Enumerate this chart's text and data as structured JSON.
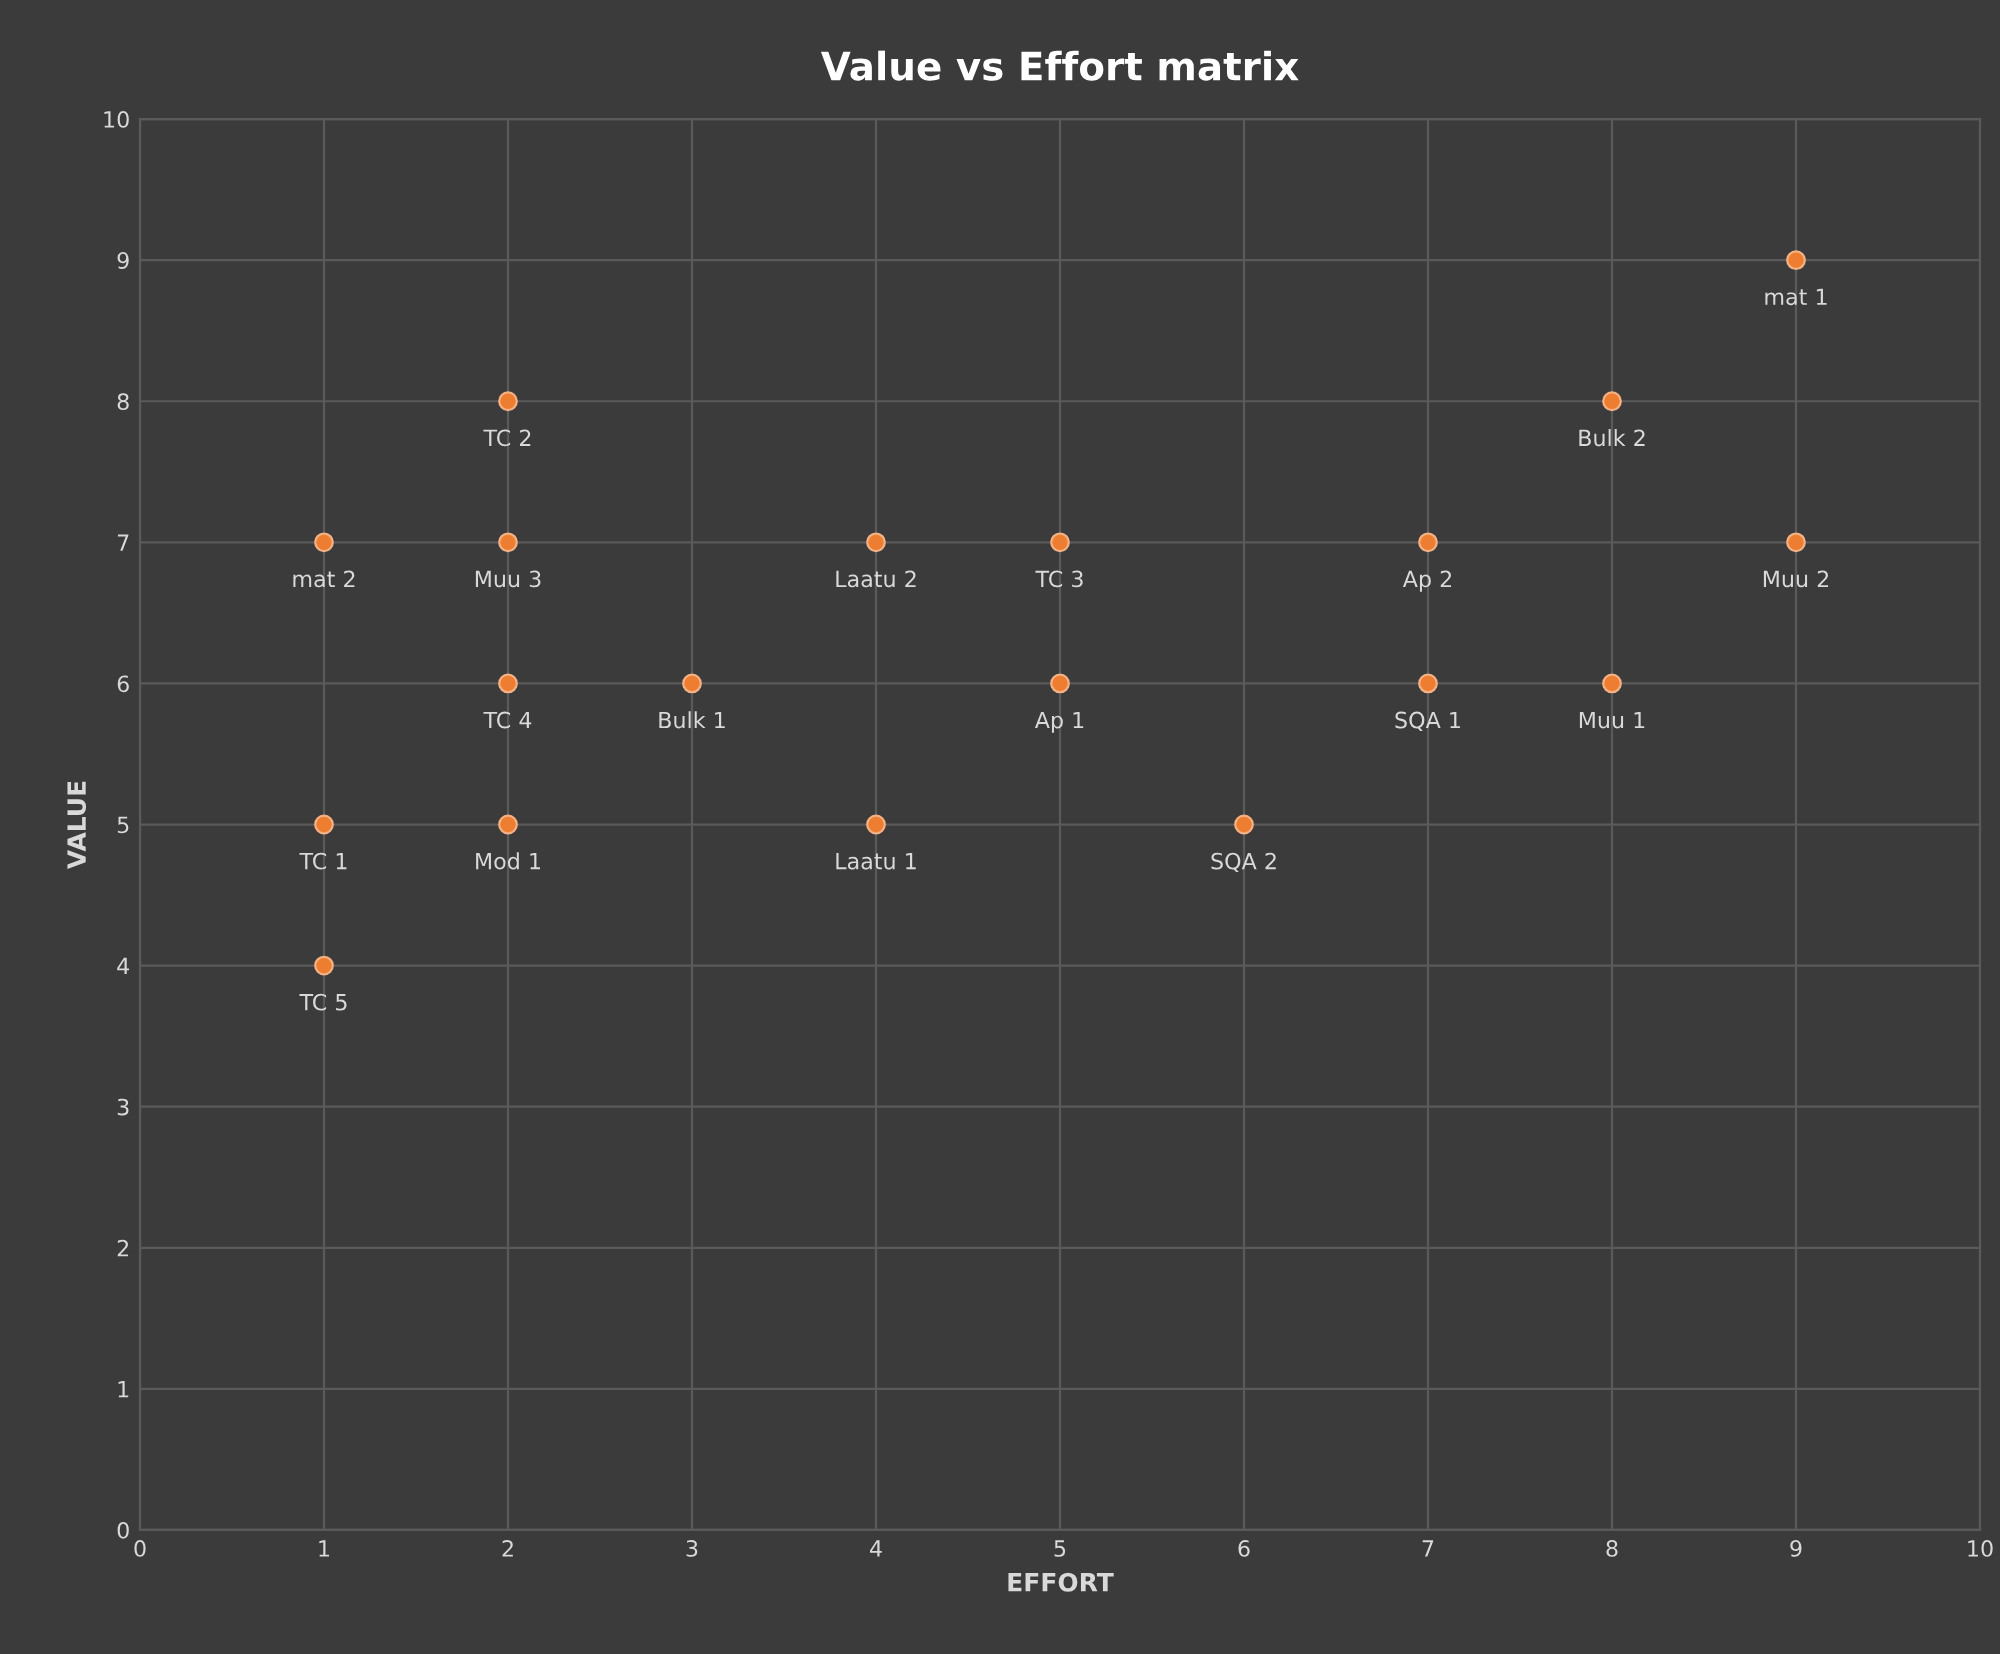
{
  "chart_data": {
    "type": "scatter",
    "title": "Value vs Effort matrix",
    "xlabel": "EFFORT",
    "ylabel": "VALUE",
    "x": [
      1,
      1,
      1,
      2,
      2,
      2,
      2,
      3,
      4,
      4,
      5,
      5,
      6,
      7,
      7,
      8,
      8,
      9,
      9
    ],
    "series": [
      {
        "color": "#ed7d31",
        "values": [
          7,
          5,
          4,
          8,
          7,
          6,
          5,
          6,
          7,
          5,
          7,
          6,
          5,
          7,
          6,
          8,
          6,
          9,
          7
        ]
      }
    ],
    "annotations": [
      {
        "text": "mat 2",
        "x": 1,
        "y": 7
      },
      {
        "text": "TC 1",
        "x": 1,
        "y": 5
      },
      {
        "text": "TC 5",
        "x": 1,
        "y": 4
      },
      {
        "text": "TC 2",
        "x": 2,
        "y": 8
      },
      {
        "text": "Muu 3",
        "x": 2,
        "y": 7
      },
      {
        "text": "TC 4",
        "x": 2,
        "y": 6
      },
      {
        "text": "Mod 1",
        "x": 2,
        "y": 5
      },
      {
        "text": "Bulk 1",
        "x": 3,
        "y": 6
      },
      {
        "text": "Laatu 2",
        "x": 4,
        "y": 7
      },
      {
        "text": "Laatu 1",
        "x": 4,
        "y": 5
      },
      {
        "text": "TC 3",
        "x": 5,
        "y": 7
      },
      {
        "text": "Ap 1",
        "x": 5,
        "y": 6
      },
      {
        "text": "SQA 2",
        "x": 6,
        "y": 5
      },
      {
        "text": "Ap 2",
        "x": 7,
        "y": 7
      },
      {
        "text": "SQA 1",
        "x": 7,
        "y": 6
      },
      {
        "text": "Bulk 2",
        "x": 8,
        "y": 8
      },
      {
        "text": "Muu 1",
        "x": 8,
        "y": 6
      },
      {
        "text": "mat 1",
        "x": 9,
        "y": 9
      },
      {
        "text": "Muu 2",
        "x": 9,
        "y": 7
      }
    ],
    "xlim": [
      0,
      10
    ],
    "xticks": [
      0,
      1,
      2,
      3,
      4,
      5,
      6,
      7,
      8,
      9,
      10
    ],
    "ylim": [
      0,
      10
    ],
    "yticks": [
      0,
      1,
      2,
      3,
      4,
      5,
      6,
      7,
      8,
      9,
      10
    ],
    "grid": true,
    "marker": "circle"
  }
}
